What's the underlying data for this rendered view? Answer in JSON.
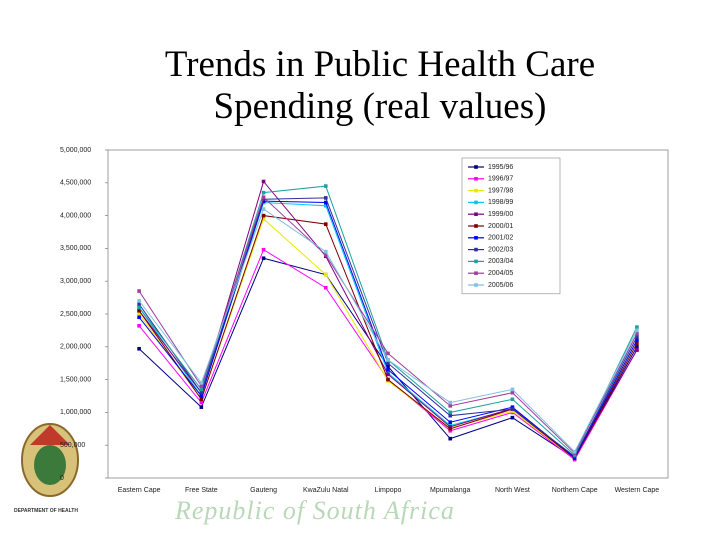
{
  "department": "DEPARTMENT OF HEALTH",
  "watermark": "Republic of South Africa",
  "chart_data": {
    "type": "line",
    "title": [
      "Trends in Public Health Care",
      "Spending (real values)"
    ],
    "categories": [
      "Eastern Cape",
      "Free State",
      "Gauteng",
      "KwaZulu Natal",
      "Limpopo",
      "Mpumalanga",
      "North West",
      "Northern Cape",
      "Western Cape"
    ],
    "ylim": [
      0,
      5000000
    ],
    "yticks": [
      {
        "value": 0,
        "label": "0"
      },
      {
        "value": 500000,
        "label": "500,000"
      },
      {
        "value": 1000000,
        "label": "1,000,000"
      },
      {
        "value": 1500000,
        "label": "1,500,000"
      },
      {
        "value": 2000000,
        "label": "2,000,000"
      },
      {
        "value": 2500000,
        "label": "2,500,000"
      },
      {
        "value": 3000000,
        "label": "3,000,000"
      },
      {
        "value": 3500000,
        "label": "3,500,000"
      },
      {
        "value": 4000000,
        "label": "4,000,000"
      },
      {
        "value": 4500000,
        "label": "4,500,000"
      },
      {
        "value": 5000000,
        "label": "5,000,000"
      }
    ],
    "legend": "upper right",
    "series": [
      {
        "name": "1995/96",
        "color": "#000080",
        "values": [
          1970000,
          1080000,
          3350000,
          3100000,
          1700000,
          600000,
          920000,
          300000,
          2000000
        ]
      },
      {
        "name": "1996/97",
        "color": "#ff00ff",
        "values": [
          2320000,
          1150000,
          3480000,
          2900000,
          1500000,
          720000,
          1000000,
          280000,
          1950000
        ]
      },
      {
        "name": "1997/98",
        "color": "#e8e800",
        "values": [
          2500000,
          1200000,
          3950000,
          3100000,
          1480000,
          760000,
          1020000,
          300000,
          2100000
        ]
      },
      {
        "name": "1998/99",
        "color": "#00c8e8",
        "values": [
          2600000,
          1250000,
          4200000,
          4150000,
          1600000,
          800000,
          1050000,
          320000,
          2200000
        ]
      },
      {
        "name": "1999/00",
        "color": "#800080",
        "values": [
          2550000,
          1300000,
          4520000,
          3380000,
          1580000,
          780000,
          1060000,
          310000,
          1950000
        ]
      },
      {
        "name": "2000/01",
        "color": "#800000",
        "values": [
          2550000,
          1200000,
          4000000,
          3870000,
          1500000,
          750000,
          1050000,
          300000,
          2050000
        ]
      },
      {
        "name": "2001/02",
        "color": "#0000ff",
        "values": [
          2450000,
          1250000,
          4220000,
          4200000,
          1650000,
          850000,
          1080000,
          310000,
          2100000
        ]
      },
      {
        "name": "2002/03",
        "color": "#3030a0",
        "values": [
          2650000,
          1300000,
          4250000,
          4270000,
          1750000,
          950000,
          1050000,
          330000,
          2150000
        ]
      },
      {
        "name": "2003/04",
        "color": "#20a0a0",
        "values": [
          2600000,
          1350000,
          4350000,
          4450000,
          1800000,
          1000000,
          1200000,
          350000,
          2300000
        ]
      },
      {
        "name": "2004/05",
        "color": "#a040a0",
        "values": [
          2850000,
          1400000,
          4280000,
          3400000,
          1900000,
          1100000,
          1300000,
          380000,
          2200000
        ]
      },
      {
        "name": "2005/06",
        "color": "#80c0e0",
        "values": [
          2700000,
          1450000,
          4100000,
          3450000,
          1800000,
          1150000,
          1350000,
          400000,
          2250000
        ]
      }
    ]
  }
}
